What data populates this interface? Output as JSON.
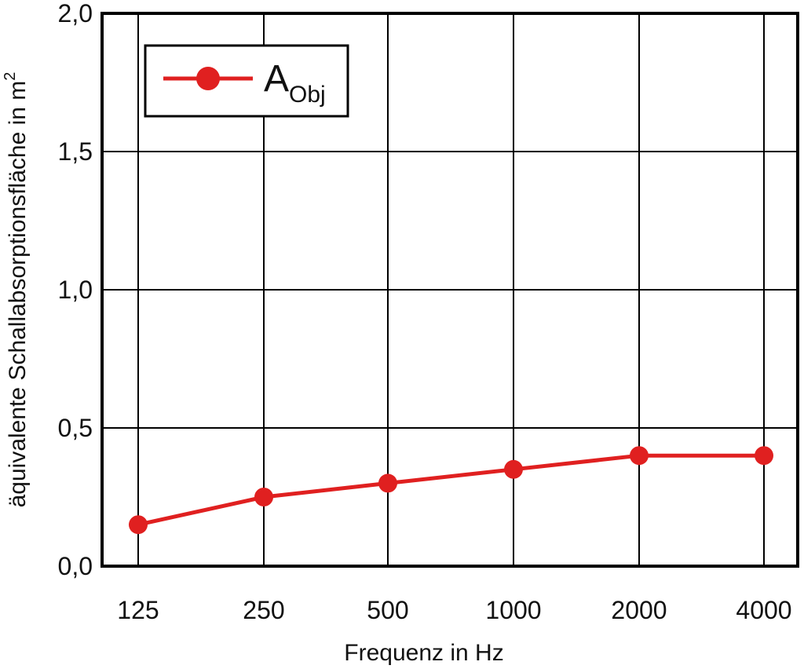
{
  "chart_data": {
    "type": "line",
    "categories": [
      "125",
      "250",
      "500",
      "1000",
      "2000",
      "4000"
    ],
    "series": [
      {
        "name": "A",
        "name_subscript": "Obj",
        "values": [
          0.15,
          0.25,
          0.3,
          0.35,
          0.4,
          0.4
        ],
        "color": "#e02020"
      }
    ],
    "xlabel": "Frequenz in Hz",
    "ylabel": "äquivalente Schallabsorptionsfläche in m",
    "ylabel_superscript": "2",
    "ylim": [
      0,
      2.0
    ],
    "yticks": [
      "0,0",
      "0,5",
      "1,0",
      "1,5",
      "2,0"
    ],
    "grid": true,
    "legend_position": "top-left"
  }
}
